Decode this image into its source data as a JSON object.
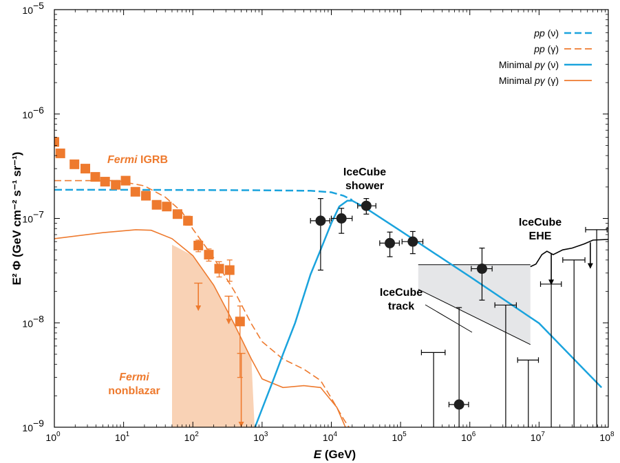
{
  "chart_data": {
    "type": "scatter",
    "xscale": "log",
    "yscale": "log",
    "xlim": [
      1,
      100000000
    ],
    "ylim": [
      1e-09,
      1e-05
    ],
    "xlabel_main": "E",
    "xlabel_unit": "(GeV)",
    "ylabel": "E² Φ (GeV cm⁻² s⁻¹ sr⁻¹)",
    "x_ticks": [
      {
        "value": 1,
        "base": "10",
        "exp": "0"
      },
      {
        "value": 10,
        "base": "10",
        "exp": "1"
      },
      {
        "value": 100,
        "base": "10",
        "exp": "2"
      },
      {
        "value": 1000,
        "base": "10",
        "exp": "3"
      },
      {
        "value": 10000,
        "base": "10",
        "exp": "4"
      },
      {
        "value": 100000,
        "base": "10",
        "exp": "5"
      },
      {
        "value": 1000000,
        "base": "10",
        "exp": "6"
      },
      {
        "value": 10000000,
        "base": "10",
        "exp": "7"
      },
      {
        "value": 100000000,
        "base": "10",
        "exp": "8"
      }
    ],
    "y_ticks": [
      {
        "value": 1e-09,
        "base": "10",
        "exp": "−9"
      },
      {
        "value": 1e-08,
        "base": "10",
        "exp": "−8"
      },
      {
        "value": 1e-07,
        "base": "10",
        "exp": "−7"
      },
      {
        "value": 1e-06,
        "base": "10",
        "exp": "−6"
      },
      {
        "value": 1e-05,
        "base": "10",
        "exp": "−5"
      }
    ],
    "legend": {
      "placement": "top-right",
      "entries": [
        {
          "label_italic": "pp",
          "label_rest": " (ν)",
          "color": "#1aa3dd",
          "style": "dashed"
        },
        {
          "label_italic": "pp",
          "label_rest": " (γ)",
          "color": "#ee7a2e",
          "style": "dashed"
        },
        {
          "label_prefix": "Minimal ",
          "label_italic": "pγ",
          "label_rest": " (ν)",
          "color": "#1aa3dd",
          "style": "solid"
        },
        {
          "label_prefix": "Minimal ",
          "label_italic": "pγ",
          "label_rest": " (γ)",
          "color": "#ee7a2e",
          "style": "solid"
        }
      ]
    },
    "colors": {
      "neutrino": "#1aa3dd",
      "gamma": "#ee7a2e",
      "nonblazar_fill": "#f9d2b5",
      "track_fill": "#e5e6e8"
    },
    "annotations": [
      {
        "id": "fermi-igrb",
        "italic": "Fermi",
        "rest": " IGRB",
        "color": "#ee7a2e"
      },
      {
        "id": "fermi-nonblazar",
        "italic": "Fermi",
        "rest": "nonblazar",
        "color": "#ee7a2e"
      },
      {
        "id": "icecube-shower",
        "line1": "IceCube",
        "line2": "shower",
        "color": "#000000"
      },
      {
        "id": "icecube-track",
        "line1": "IceCube",
        "line2": "track",
        "color": "#000000"
      },
      {
        "id": "icecube-ehe",
        "line1": "IceCube",
        "line2": "EHE",
        "color": "#000000"
      }
    ],
    "series": {
      "pp_nu": [
        [
          1,
          1.88e-07
        ],
        [
          10,
          1.88e-07
        ],
        [
          100,
          1.87e-07
        ],
        [
          1000,
          1.86e-07
        ],
        [
          5000,
          1.84e-07
        ],
        [
          10000,
          1.78e-07
        ],
        [
          15000,
          1.65e-07
        ],
        [
          20000,
          1.5e-07
        ]
      ],
      "pp_gamma": [
        [
          1,
          2.3e-07
        ],
        [
          8,
          2.3e-07
        ],
        [
          20,
          2.05e-07
        ],
        [
          40,
          1.6e-07
        ],
        [
          70,
          1.15e-07
        ],
        [
          100,
          7.9e-08
        ],
        [
          200,
          4.2e-08
        ],
        [
          400,
          2e-08
        ],
        [
          700,
          9.8e-09
        ],
        [
          1000,
          6.6e-09
        ],
        [
          2000,
          4.5e-09
        ],
        [
          4000,
          3.6e-09
        ],
        [
          7000,
          2.8e-09
        ],
        [
          10000,
          1.9e-09
        ],
        [
          15000,
          1.2e-09
        ],
        [
          18000,
          1e-09
        ]
      ],
      "pg_nu": [
        [
          790,
          1e-09
        ],
        [
          1000,
          1.5e-09
        ],
        [
          1500,
          3e-09
        ],
        [
          2000,
          5e-09
        ],
        [
          3000,
          1e-08
        ],
        [
          5000,
          2.9e-08
        ],
        [
          7000,
          5e-08
        ],
        [
          10000,
          9e-08
        ],
        [
          13000,
          1.3e-07
        ],
        [
          17000,
          1.48e-07
        ],
        [
          20000,
          1.48e-07
        ],
        [
          30000,
          1.28e-07
        ],
        [
          100000,
          7.6e-08
        ],
        [
          1000000,
          2.77e-08
        ],
        [
          10000000,
          9.9e-09
        ],
        [
          80000000,
          2.4e-09
        ]
      ],
      "pg_gamma": [
        [
          1,
          6.4e-08
        ],
        [
          5,
          7.3e-08
        ],
        [
          15,
          7.8e-08
        ],
        [
          25,
          7.7e-08
        ],
        [
          50,
          6.4e-08
        ],
        [
          100,
          4.4e-08
        ],
        [
          200,
          2.3e-08
        ],
        [
          400,
          9.6e-09
        ],
        [
          700,
          4.5e-09
        ],
        [
          1000,
          2.9e-09
        ],
        [
          2000,
          2.4e-09
        ],
        [
          4000,
          2.5e-09
        ],
        [
          7000,
          2.4e-09
        ],
        [
          12000,
          1.55e-09
        ],
        [
          16000,
          1e-09
        ]
      ],
      "fermi_igrb": [
        {
          "x": 1.0,
          "y": 5.4e-07,
          "lo": 5e-07,
          "hi": 5.8e-07
        },
        {
          "x": 1.22,
          "y": 4.2e-07,
          "lo": 3.9e-07,
          "hi": 4.5e-07
        },
        {
          "x": 1.95,
          "y": 3.3e-07,
          "lo": 3.05e-07,
          "hi": 3.55e-07
        },
        {
          "x": 2.8,
          "y": 3e-07,
          "lo": 2.8e-07,
          "hi": 3.2e-07
        },
        {
          "x": 3.9,
          "y": 2.5e-07,
          "lo": 2.35e-07,
          "hi": 2.65e-07
        },
        {
          "x": 5.4,
          "y": 2.25e-07,
          "lo": 2.1e-07,
          "hi": 2.4e-07
        },
        {
          "x": 7.7,
          "y": 2.1e-07,
          "lo": 1.95e-07,
          "hi": 2.25e-07
        },
        {
          "x": 10.7,
          "y": 2.3e-07,
          "lo": 2.15e-07,
          "hi": 2.45e-07
        },
        {
          "x": 14.8,
          "y": 1.8e-07,
          "lo": 1.68e-07,
          "hi": 1.92e-07
        },
        {
          "x": 21,
          "y": 1.65e-07,
          "lo": 1.54e-07,
          "hi": 1.76e-07
        },
        {
          "x": 30,
          "y": 1.35e-07,
          "lo": 1.26e-07,
          "hi": 1.44e-07
        },
        {
          "x": 42,
          "y": 1.3e-07,
          "lo": 1.21e-07,
          "hi": 1.39e-07
        },
        {
          "x": 60,
          "y": 1.1e-07,
          "lo": 1.02e-07,
          "hi": 1.18e-07
        },
        {
          "x": 85,
          "y": 9.5e-08,
          "lo": 8.6e-08,
          "hi": 1.05e-07
        },
        {
          "x": 120,
          "y": 5.5e-08,
          "lo": 4.8e-08,
          "hi": 6.2e-08
        },
        {
          "x": 170,
          "y": 4.5e-08,
          "lo": 3.9e-08,
          "hi": 5.1e-08
        },
        {
          "x": 240,
          "y": 3.3e-08,
          "lo": 2.75e-08,
          "hi": 3.85e-08
        },
        {
          "x": 340,
          "y": 3.2e-08,
          "lo": 2.5e-08,
          "hi": 4e-08
        },
        {
          "x": 480,
          "y": 1.03e-08,
          "lo": 3e-09,
          "hi": 1.45e-08
        }
      ],
      "fermi_upper_limits": [
        {
          "x": 120,
          "y": 2.4e-08,
          "to": 1.3e-08
        },
        {
          "x": 330,
          "y": 1.8e-08,
          "to": 9.7e-09
        },
        {
          "x": 500,
          "y": 5.1e-09,
          "to": 1e-09
        }
      ],
      "nonblazar_band": {
        "x_from": 50,
        "x_to": 780
      },
      "icecube_points": [
        {
          "x": 7000,
          "y": 9.5e-08,
          "lo": 3.2e-08,
          "hi": 1.55e-07,
          "xlo": 5000,
          "xhi": 9500
        },
        {
          "x": 14000,
          "y": 1e-07,
          "lo": 7.2e-08,
          "hi": 1.25e-07,
          "xlo": 10000,
          "xhi": 20000
        },
        {
          "x": 32000,
          "y": 1.32e-07,
          "lo": 1.1e-07,
          "hi": 1.55e-07,
          "xlo": 24000,
          "xhi": 44000
        },
        {
          "x": 70000,
          "y": 5.8e-08,
          "lo": 4.3e-08,
          "hi": 7.4e-08,
          "xlo": 50000,
          "xhi": 96000
        },
        {
          "x": 150000,
          "y": 6e-08,
          "lo": 4.6e-08,
          "hi": 7.5e-08,
          "xlo": 105000,
          "xhi": 210000
        },
        {
          "x": 700000,
          "y": 1.65e-09,
          "lo": 1e-09,
          "hi": 1.4e-08,
          "xlo": 500000,
          "xhi": 960000
        },
        {
          "x": 1500000,
          "y": 3.3e-08,
          "lo": 1.65e-08,
          "hi": 5.2e-08,
          "xlo": 1050000,
          "xhi": 2100000
        }
      ],
      "icecube_upper_limits": [
        {
          "x": 300000,
          "y": 5.2e-09,
          "xlo": 200000,
          "xhi": 440000
        },
        {
          "x": 3300000,
          "y": 1.48e-08,
          "xlo": 2300000,
          "xhi": 4700000
        },
        {
          "x": 7000000,
          "y": 4.4e-09,
          "xlo": 4900000,
          "xhi": 9800000
        },
        {
          "x": 15000000,
          "y": 2.35e-08,
          "xlo": 10500000,
          "xhi": 21000000
        },
        {
          "x": 32000000,
          "y": 4e-08,
          "xlo": 22000000,
          "xhi": 46000000
        },
        {
          "x": 68000000,
          "y": 7.8e-08,
          "xlo": 47000000,
          "xhi": 96000000
        }
      ],
      "icecube_track": {
        "x_from": 180000,
        "x_to": 7500000,
        "top": 3.6e-08,
        "bottom_left": 2.1e-08,
        "bottom_right": 6.2e-09
      },
      "icecube_ehe": [
        [
          7500000,
          3.45e-08
        ],
        [
          9000000,
          3.65e-08
        ],
        [
          11000000,
          4.5e-08
        ],
        [
          13000000,
          4.85e-08
        ],
        [
          16000000,
          4.5e-08
        ],
        [
          22000000,
          5e-08
        ],
        [
          30000000,
          5.2e-08
        ],
        [
          45000000,
          5.7e-08
        ],
        [
          60000000,
          6.2e-08
        ],
        [
          100000000,
          6.3e-08
        ]
      ],
      "icecube_ehe_arrows": [
        [
          15000000,
          4.6e-08,
          2.3e-08
        ],
        [
          55000000,
          5.9e-08,
          3.3e-08
        ]
      ]
    }
  }
}
